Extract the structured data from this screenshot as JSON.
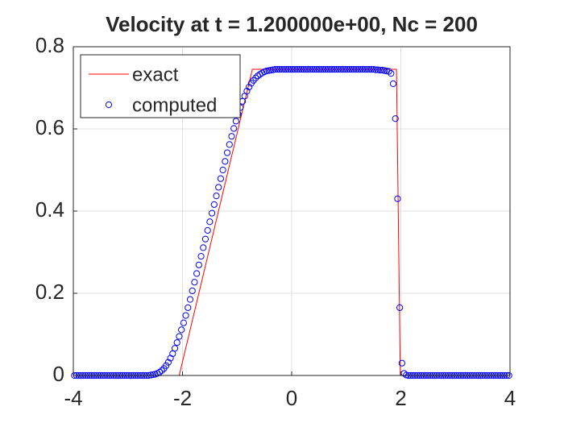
{
  "chart_data": {
    "type": "line",
    "title": "Velocity at t = 1.200000e+00, Nc = 200",
    "xlim": [
      -4,
      4
    ],
    "ylim": [
      0,
      0.8
    ],
    "xticks": [
      -4,
      -2,
      0,
      2,
      4
    ],
    "yticks": [
      0,
      0.2,
      0.4,
      0.6,
      0.8
    ],
    "grid": true,
    "legend": "northwest",
    "series": [
      {
        "name": "exact",
        "color": "#ff0000",
        "type": "line",
        "x": [
          -4,
          -2.06,
          -0.72,
          1.92,
          1.99,
          4
        ],
        "values": [
          0,
          0,
          0.745,
          0.745,
          0,
          0
        ]
      },
      {
        "name": "computed",
        "color": "#0000ff",
        "type": "scatter",
        "x": [
          -3.98,
          -3.94,
          -3.9,
          -3.86,
          -3.82,
          -3.78,
          -3.74,
          -3.7,
          -3.66,
          -3.62,
          -3.58,
          -3.54,
          -3.5,
          -3.46,
          -3.42,
          -3.38,
          -3.34,
          -3.3,
          -3.26,
          -3.22,
          -3.18,
          -3.14,
          -3.1,
          -3.06,
          -3.02,
          -2.98,
          -2.94,
          -2.9,
          -2.86,
          -2.82,
          -2.78,
          -2.74,
          -2.7,
          -2.66,
          -2.62,
          -2.58,
          -2.54,
          -2.5,
          -2.46,
          -2.42,
          -2.38,
          -2.34,
          -2.3,
          -2.26,
          -2.22,
          -2.18,
          -2.14,
          -2.1,
          -2.06,
          -2.02,
          -1.98,
          -1.94,
          -1.9,
          -1.86,
          -1.82,
          -1.78,
          -1.74,
          -1.7,
          -1.66,
          -1.62,
          -1.58,
          -1.54,
          -1.5,
          -1.46,
          -1.42,
          -1.38,
          -1.34,
          -1.3,
          -1.26,
          -1.22,
          -1.18,
          -1.14,
          -1.1,
          -1.06,
          -1.02,
          -0.98,
          -0.94,
          -0.9,
          -0.86,
          -0.82,
          -0.78,
          -0.74,
          -0.7,
          -0.66,
          -0.62,
          -0.58,
          -0.54,
          -0.5,
          -0.46,
          -0.42,
          -0.38,
          -0.34,
          -0.3,
          -0.26,
          -0.22,
          -0.18,
          -0.14,
          -0.1,
          -0.06,
          -0.02,
          0.02,
          0.06,
          0.1,
          0.14,
          0.18,
          0.22,
          0.26,
          0.3,
          0.34,
          0.38,
          0.42,
          0.46,
          0.5,
          0.54,
          0.58,
          0.62,
          0.66,
          0.7,
          0.74,
          0.78,
          0.82,
          0.86,
          0.9,
          0.94,
          0.98,
          1.02,
          1.06,
          1.1,
          1.14,
          1.18,
          1.22,
          1.26,
          1.3,
          1.34,
          1.38,
          1.42,
          1.46,
          1.5,
          1.54,
          1.58,
          1.62,
          1.66,
          1.7,
          1.74,
          1.78,
          1.82,
          1.86,
          1.9,
          1.94,
          1.98,
          2.02,
          2.06,
          2.1,
          2.14,
          2.18,
          2.22,
          2.26,
          2.3,
          2.34,
          2.38,
          2.42,
          2.46,
          2.5,
          2.54,
          2.58,
          2.62,
          2.66,
          2.7,
          2.74,
          2.78,
          2.82,
          2.86,
          2.9,
          2.94,
          2.98,
          3.02,
          3.06,
          3.1,
          3.14,
          3.18,
          3.22,
          3.26,
          3.3,
          3.34,
          3.38,
          3.42,
          3.46,
          3.5,
          3.54,
          3.58,
          3.62,
          3.66,
          3.7,
          3.74,
          3.78,
          3.82,
          3.86,
          3.9,
          3.94,
          3.98
        ],
        "values": [
          0,
          0,
          0,
          0,
          0,
          0,
          0,
          0,
          0,
          0,
          0,
          0,
          0,
          0,
          0,
          0,
          0,
          0,
          0,
          0,
          0,
          0,
          0,
          0,
          0,
          0,
          0,
          0,
          0,
          0,
          0,
          0,
          0,
          0,
          0,
          0.001,
          0.002,
          0.003,
          0.005,
          0.008,
          0.012,
          0.017,
          0.024,
          0.032,
          0.042,
          0.053,
          0.066,
          0.08,
          0.095,
          0.111,
          0.128,
          0.146,
          0.165,
          0.185,
          0.206,
          0.227,
          0.248,
          0.269,
          0.29,
          0.311,
          0.332,
          0.353,
          0.374,
          0.395,
          0.416,
          0.437,
          0.458,
          0.479,
          0.5,
          0.521,
          0.542,
          0.562,
          0.582,
          0.601,
          0.619,
          0.636,
          0.652,
          0.667,
          0.68,
          0.692,
          0.702,
          0.711,
          0.718,
          0.724,
          0.729,
          0.733,
          0.736,
          0.739,
          0.741,
          0.742,
          0.743,
          0.744,
          0.745,
          0.745,
          0.745,
          0.745,
          0.745,
          0.745,
          0.745,
          0.745,
          0.745,
          0.745,
          0.745,
          0.745,
          0.745,
          0.745,
          0.745,
          0.745,
          0.745,
          0.745,
          0.745,
          0.745,
          0.745,
          0.745,
          0.745,
          0.745,
          0.745,
          0.745,
          0.745,
          0.745,
          0.745,
          0.745,
          0.745,
          0.745,
          0.745,
          0.745,
          0.745,
          0.745,
          0.745,
          0.745,
          0.745,
          0.745,
          0.745,
          0.745,
          0.745,
          0.745,
          0.745,
          0.745,
          0.744,
          0.744,
          0.743,
          0.743,
          0.742,
          0.741,
          0.74,
          0.735,
          0.71,
          0.625,
          0.43,
          0.165,
          0.03,
          0.005,
          0.001,
          0,
          0,
          0,
          0,
          0,
          0,
          0,
          0,
          0,
          0,
          0,
          0,
          0,
          0,
          0,
          0,
          0,
          0,
          0,
          0,
          0,
          0,
          0,
          0,
          0,
          0,
          0,
          0,
          0,
          0,
          0,
          0,
          0,
          0,
          0,
          0,
          0,
          0,
          0,
          0,
          0,
          0,
          0,
          0,
          0,
          0,
          0
        ]
      }
    ]
  }
}
